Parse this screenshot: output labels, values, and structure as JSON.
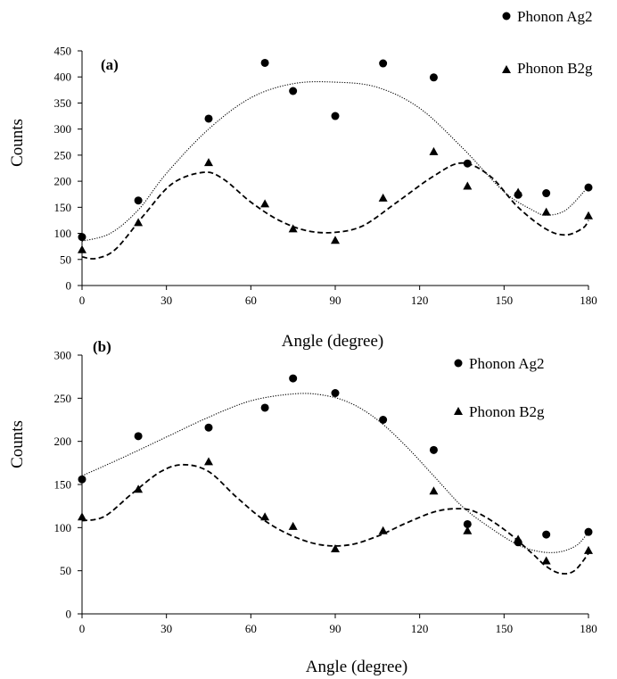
{
  "chart_data": [
    {
      "type": "scatter",
      "panel_label": "(a)",
      "xlabel": "Angle (degree)",
      "ylabel": "Counts",
      "xlim": [
        0,
        180
      ],
      "ylim": [
        0,
        450
      ],
      "xticks": [
        0,
        30,
        60,
        90,
        120,
        150,
        180
      ],
      "yticks": [
        0,
        50,
        100,
        150,
        200,
        250,
        300,
        350,
        400,
        450
      ],
      "grid": false,
      "legend_placement": "top-right, outside plot",
      "series": [
        {
          "name": "Phonon Ag2",
          "marker": "circle",
          "line_style": "dotted",
          "x": [
            0,
            20,
            45,
            65,
            75,
            90,
            107,
            125,
            137,
            155,
            165,
            180
          ],
          "y": [
            93,
            163,
            320,
            427,
            373,
            325,
            426,
            399,
            234,
            174,
            177,
            188
          ],
          "trend": [
            [
              0,
              85
            ],
            [
              10,
              100
            ],
            [
              20,
              145
            ],
            [
              30,
              215
            ],
            [
              45,
              300
            ],
            [
              60,
              360
            ],
            [
              75,
              387
            ],
            [
              90,
              390
            ],
            [
              105,
              380
            ],
            [
              120,
              340
            ],
            [
              135,
              265
            ],
            [
              150,
              180
            ],
            [
              160,
              145
            ],
            [
              165,
              135
            ],
            [
              172,
              145
            ],
            [
              180,
              190
            ]
          ]
        },
        {
          "name": "Phonon B2g",
          "marker": "triangle",
          "line_style": "dashed",
          "x": [
            0,
            20,
            45,
            65,
            75,
            90,
            107,
            125,
            137,
            155,
            165,
            180
          ],
          "y": [
            68,
            120,
            235,
            156,
            108,
            86,
            167,
            256,
            190,
            178,
            140,
            133
          ],
          "trend": [
            [
              0,
              55
            ],
            [
              5,
              52
            ],
            [
              12,
              70
            ],
            [
              22,
              135
            ],
            [
              32,
              195
            ],
            [
              43,
              217
            ],
            [
              50,
              205
            ],
            [
              60,
              160
            ],
            [
              70,
              125
            ],
            [
              80,
              105
            ],
            [
              90,
              102
            ],
            [
              100,
              115
            ],
            [
              112,
              160
            ],
            [
              125,
              210
            ],
            [
              135,
              235
            ],
            [
              145,
              210
            ],
            [
              155,
              150
            ],
            [
              165,
              108
            ],
            [
              172,
              97
            ],
            [
              178,
              110
            ],
            [
              180,
              125
            ]
          ]
        }
      ]
    },
    {
      "type": "scatter",
      "panel_label": "(b)",
      "xlabel": "Angle (degree)",
      "ylabel": "Counts",
      "xlim": [
        0,
        180
      ],
      "ylim": [
        0,
        300
      ],
      "xticks": [
        0,
        30,
        60,
        90,
        120,
        150,
        180
      ],
      "yticks": [
        0,
        50,
        100,
        150,
        200,
        250,
        300
      ],
      "grid": false,
      "legend_placement": "top-right",
      "series": [
        {
          "name": "Phonon Ag2",
          "marker": "circle",
          "line_style": "dotted",
          "x": [
            0,
            20,
            45,
            65,
            75,
            90,
            107,
            125,
            137,
            155,
            165,
            180
          ],
          "y": [
            156,
            206,
            216,
            239,
            273,
            256,
            225,
            190,
            104,
            83,
            92,
            95
          ],
          "trend": [
            [
              0,
              160
            ],
            [
              15,
              182
            ],
            [
              30,
              205
            ],
            [
              45,
              228
            ],
            [
              60,
              247
            ],
            [
              75,
              255
            ],
            [
              85,
              254
            ],
            [
              95,
              245
            ],
            [
              105,
              225
            ],
            [
              115,
              195
            ],
            [
              125,
              160
            ],
            [
              135,
              125
            ],
            [
              145,
              100
            ],
            [
              155,
              80
            ],
            [
              163,
              72
            ],
            [
              170,
              72
            ],
            [
              176,
              80
            ],
            [
              180,
              95
            ]
          ]
        },
        {
          "name": "Phonon B2g",
          "marker": "triangle",
          "line_style": "dashed",
          "x": [
            0,
            20,
            45,
            65,
            75,
            90,
            107,
            125,
            137,
            155,
            165,
            180
          ],
          "y": [
            112,
            144,
            176,
            112,
            101,
            75,
            96,
            142,
            96,
            86,
            61,
            73
          ],
          "trend": [
            [
              0,
              108
            ],
            [
              8,
              113
            ],
            [
              18,
              140
            ],
            [
              28,
              165
            ],
            [
              36,
              173
            ],
            [
              45,
              165
            ],
            [
              55,
              135
            ],
            [
              65,
              108
            ],
            [
              75,
              90
            ],
            [
              85,
              80
            ],
            [
              95,
              80
            ],
            [
              105,
              90
            ],
            [
              115,
              105
            ],
            [
              125,
              118
            ],
            [
              133,
              122
            ],
            [
              140,
              118
            ],
            [
              150,
              98
            ],
            [
              160,
              70
            ],
            [
              165,
              55
            ],
            [
              170,
              47
            ],
            [
              175,
              50
            ],
            [
              180,
              70
            ]
          ]
        }
      ]
    }
  ]
}
